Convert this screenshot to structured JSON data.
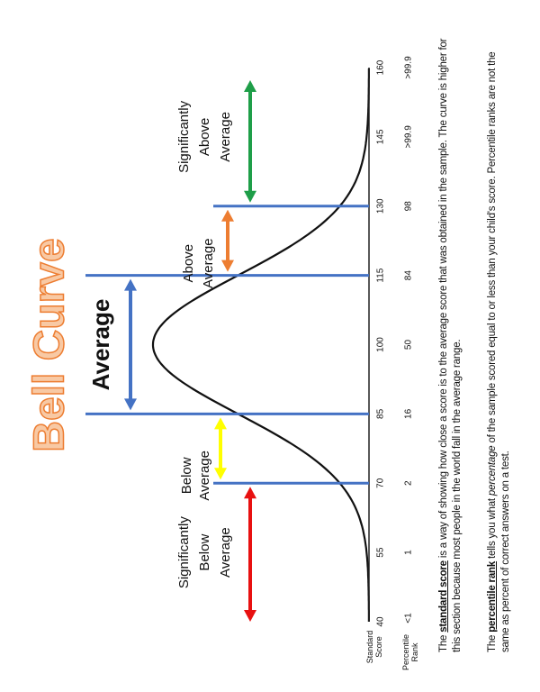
{
  "title": "Bell Curve",
  "xlim": [
    40,
    160
  ],
  "boundaries": [
    70,
    85,
    115,
    130
  ],
  "categories": [
    {
      "lines": [
        "Significantly",
        "Below",
        "Average"
      ],
      "color": "#e81010"
    },
    {
      "lines": [
        "Below",
        "Average"
      ],
      "color": "#ffff00"
    },
    {
      "lines": [
        "Average"
      ],
      "color": "#4472c4"
    },
    {
      "lines": [
        "Above",
        "Average"
      ],
      "color": "#ed7d31"
    },
    {
      "lines": [
        "Significantly",
        "Above",
        "Average"
      ],
      "color": "#1e9e48"
    }
  ],
  "line_color": "#4472c4",
  "score_row": {
    "label": "Standard Score",
    "values": [
      40,
      55,
      70,
      85,
      100,
      115,
      130,
      145,
      160
    ]
  },
  "percentile_row": {
    "label": "Percentile Rank",
    "values": [
      "<1",
      "1",
      "2",
      "16",
      "50",
      "84",
      "98",
      ">99.9",
      ">99.9"
    ]
  },
  "paragraphs": [
    {
      "parts": [
        "The ",
        "standard score",
        " is a way of showing how close a score is to the average score that was obtained in the sample. The curve is higher for this section because most people in the world fall in the average range."
      ]
    },
    {
      "parts": [
        "The ",
        "percentile rank",
        " tells you what ",
        "percentage",
        " of the sample scored equal to or less than your child's score. Percentile ranks are not the same as percent of correct answers on a test."
      ]
    }
  ]
}
